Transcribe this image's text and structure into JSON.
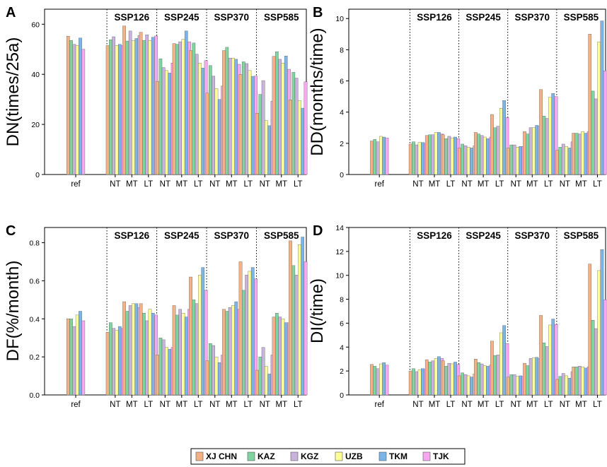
{
  "legend": {
    "items": [
      {
        "name": "XJ CHN",
        "color": "#F4B183"
      },
      {
        "name": "KAZ",
        "color": "#7FD4A0"
      },
      {
        "name": "KGZ",
        "color": "#C9B3DD"
      },
      {
        "name": "UZB",
        "color": "#FFFF99"
      },
      {
        "name": "TKM",
        "color": "#7CB4E8"
      },
      {
        "name": "TJK",
        "color": "#F7A8F0"
      }
    ]
  },
  "chart_data": [
    {
      "type": "bar",
      "panel": "A",
      "ylabel": "DN(times/25a)",
      "ylim": [
        0,
        66
      ],
      "yticks": [
        0,
        20,
        40,
        60
      ],
      "groups": [
        "ref",
        "SSP126",
        "SSP245",
        "SSP370",
        "SSP585"
      ],
      "categories": [
        "ref",
        "NT",
        "MT",
        "LT",
        "NT",
        "MT",
        "LT",
        "NT",
        "MT",
        "LT",
        "NT",
        "MT",
        "LT"
      ],
      "series": [
        {
          "name": "XJ CHN",
          "values": [
            55.2,
            51.5,
            59.3,
            56.8,
            37.2,
            52.3,
            49.5,
            32.5,
            49.5,
            40.0,
            24.5,
            47.2,
            29.8
          ]
        },
        {
          "name": "KAZ",
          "values": [
            53.5,
            53.8,
            53.3,
            53.5,
            46.2,
            52.0,
            52.5,
            43.5,
            50.8,
            45.0,
            32.0,
            49.0,
            40.8
          ]
        },
        {
          "name": "KGZ",
          "values": [
            52.0,
            55.0,
            57.3,
            55.8,
            42.7,
            53.0,
            48.0,
            39.3,
            46.5,
            44.3,
            37.5,
            46.0,
            38.5
          ]
        },
        {
          "name": "UZB",
          "values": [
            51.5,
            51.5,
            53.5,
            53.5,
            41.5,
            54.0,
            44.5,
            34.3,
            46.5,
            41.5,
            21.5,
            44.5,
            29.5
          ]
        },
        {
          "name": "TKM",
          "values": [
            54.5,
            52.0,
            54.3,
            54.8,
            40.5,
            57.3,
            42.5,
            30.0,
            46.0,
            39.2,
            19.5,
            47.3,
            26.5
          ]
        },
        {
          "name": "TJK",
          "values": [
            50.0,
            51.5,
            55.5,
            55.3,
            44.5,
            53.0,
            45.5,
            35.3,
            44.0,
            39.3,
            29.3,
            42.0,
            37.0
          ]
        }
      ]
    },
    {
      "type": "bar",
      "panel": "B",
      "ylabel": "DD(months/time)",
      "ylim": [
        0,
        10.6
      ],
      "yticks": [
        0,
        2,
        4,
        6,
        8,
        10
      ],
      "groups": [
        "ref",
        "SSP126",
        "SSP245",
        "SSP370",
        "SSP585"
      ],
      "categories": [
        "ref",
        "NT",
        "MT",
        "LT",
        "NT",
        "MT",
        "LT",
        "NT",
        "MT",
        "LT",
        "NT",
        "MT",
        "LT"
      ],
      "series": [
        {
          "name": "XJ CHN",
          "values": [
            2.15,
            1.95,
            2.5,
            2.55,
            1.7,
            2.7,
            3.85,
            1.7,
            2.75,
            5.45,
            1.55,
            2.65,
            9.0
          ]
        },
        {
          "name": "KAZ",
          "values": [
            2.25,
            2.1,
            2.55,
            2.3,
            1.95,
            2.6,
            3.0,
            1.9,
            2.6,
            3.75,
            1.75,
            2.65,
            5.35
          ]
        },
        {
          "name": "KGZ",
          "values": [
            2.1,
            1.9,
            2.55,
            2.45,
            1.85,
            2.5,
            3.1,
            1.9,
            3.0,
            3.6,
            1.95,
            2.6,
            4.85
          ]
        },
        {
          "name": "UZB",
          "values": [
            2.45,
            2.05,
            2.7,
            2.35,
            1.75,
            2.4,
            4.25,
            1.75,
            3.0,
            4.95,
            1.8,
            2.75,
            8.5
          ]
        },
        {
          "name": "TKM",
          "values": [
            2.4,
            2.05,
            2.7,
            2.4,
            1.7,
            2.3,
            4.75,
            1.8,
            3.15,
            5.2,
            1.7,
            2.65,
            9.85
          ]
        },
        {
          "name": "TJK",
          "values": [
            2.35,
            2.0,
            2.6,
            2.3,
            1.85,
            2.4,
            3.65,
            1.8,
            3.1,
            5.0,
            2.1,
            2.75,
            6.65
          ]
        }
      ]
    },
    {
      "type": "bar",
      "panel": "C",
      "ylabel": "DF(%/month)",
      "ylim": [
        0,
        0.88
      ],
      "yticks": [
        0.0,
        0.2,
        0.4,
        0.6,
        0.8
      ],
      "groups": [
        "ref",
        "SSP126",
        "SSP245",
        "SSP370",
        "SSP585"
      ],
      "categories": [
        "ref",
        "NT",
        "MT",
        "LT",
        "NT",
        "MT",
        "LT",
        "NT",
        "MT",
        "LT",
        "NT",
        "MT",
        "LT"
      ],
      "series": [
        {
          "name": "XJ CHN",
          "values": [
            0.4,
            0.33,
            0.49,
            0.48,
            0.21,
            0.47,
            0.62,
            0.18,
            0.45,
            0.7,
            0.13,
            0.41,
            0.81
          ]
        },
        {
          "name": "KAZ",
          "values": [
            0.4,
            0.38,
            0.44,
            0.43,
            0.3,
            0.42,
            0.5,
            0.27,
            0.44,
            0.55,
            0.2,
            0.43,
            0.68
          ]
        },
        {
          "name": "KGZ",
          "values": [
            0.36,
            0.35,
            0.47,
            0.39,
            0.29,
            0.45,
            0.48,
            0.26,
            0.46,
            0.63,
            0.25,
            0.41,
            0.63
          ]
        },
        {
          "name": "UZB",
          "values": [
            0.42,
            0.34,
            0.48,
            0.45,
            0.25,
            0.43,
            0.63,
            0.2,
            0.47,
            0.65,
            0.15,
            0.4,
            0.79
          ]
        },
        {
          "name": "TKM",
          "values": [
            0.44,
            0.36,
            0.48,
            0.43,
            0.24,
            0.41,
            0.67,
            0.17,
            0.49,
            0.67,
            0.11,
            0.38,
            0.83
          ]
        },
        {
          "name": "TJK",
          "values": [
            0.39,
            0.35,
            0.46,
            0.42,
            0.25,
            0.45,
            0.55,
            0.21,
            0.45,
            0.61,
            0.21,
            0.38,
            0.7
          ]
        }
      ]
    },
    {
      "type": "bar",
      "panel": "D",
      "ylabel": "DI(/time)",
      "ylim": [
        0,
        14
      ],
      "yticks": [
        0,
        2,
        4,
        6,
        8,
        10,
        12,
        14
      ],
      "groups": [
        "ref",
        "SSP126",
        "SSP245",
        "SSP370",
        "SSP585"
      ],
      "categories": [
        "ref",
        "NT",
        "MT",
        "LT",
        "NT",
        "MT",
        "LT",
        "NT",
        "MT",
        "LT",
        "NT",
        "MT",
        "LT"
      ],
      "series": [
        {
          "name": "XJ CHN",
          "values": [
            2.55,
            2.0,
            2.95,
            2.85,
            1.6,
            3.0,
            4.5,
            1.5,
            2.65,
            6.65,
            1.3,
            2.35,
            10.95
          ]
        },
        {
          "name": "KAZ",
          "values": [
            2.4,
            2.2,
            2.75,
            2.4,
            1.85,
            2.7,
            3.3,
            1.7,
            2.45,
            4.35,
            1.55,
            2.35,
            6.25
          ]
        },
        {
          "name": "KGZ",
          "values": [
            2.2,
            1.95,
            2.85,
            2.65,
            1.7,
            2.6,
            3.35,
            1.7,
            3.05,
            4.05,
            1.8,
            2.4,
            5.55
          ]
        },
        {
          "name": "UZB",
          "values": [
            2.6,
            2.1,
            3.05,
            2.6,
            1.6,
            2.45,
            5.2,
            1.55,
            3.1,
            5.85,
            1.6,
            2.35,
            10.4
          ]
        },
        {
          "name": "TKM",
          "values": [
            2.7,
            2.2,
            3.2,
            2.75,
            1.5,
            2.4,
            5.8,
            1.6,
            3.15,
            6.35,
            1.4,
            2.25,
            12.15
          ]
        },
        {
          "name": "TJK",
          "values": [
            2.5,
            2.15,
            3.05,
            2.55,
            1.75,
            2.5,
            4.3,
            1.55,
            3.05,
            5.9,
            1.95,
            2.35,
            7.95
          ]
        }
      ]
    }
  ]
}
